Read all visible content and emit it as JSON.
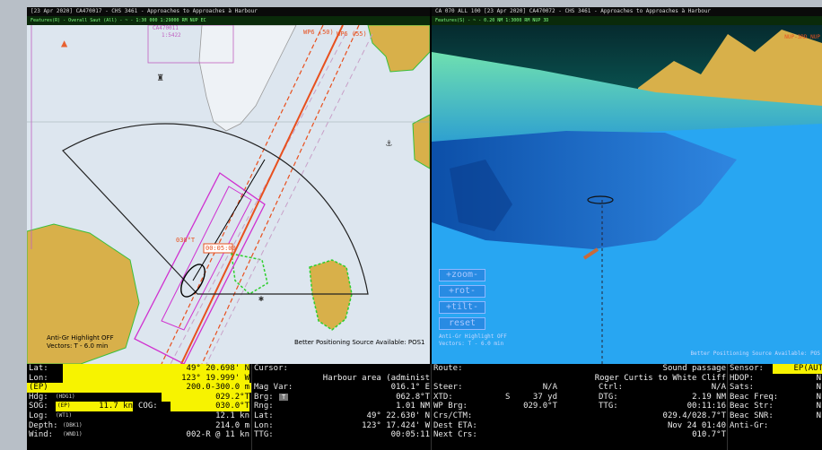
{
  "chart": {
    "title": "[23 Apr 2020] CA470017 - CHS 3461 - Approaches to Approaches à Harbour",
    "subtitle": "Features(R) - Overall Saut (All) -  ~  -  1:30 000  1:29000  RM  NUP  EC",
    "cell_label_1": "CA470011",
    "cell_label_2": "1:5422",
    "waypoint_label_1": "WP6 (50)",
    "waypoint_label_2": "WP6 (55)",
    "bearing_label": "030°T",
    "time_label": "00:05:00",
    "anti_grounding": "Anti-Gr Highlight OFF",
    "vectors": "Vectors: T - 6.0 min",
    "positioning": "Better Positioning Source Available: POS1"
  },
  "view3d": {
    "title": "CA 070 ALL 100  [23 Apr 2020] CA470072 - CHS 3461 - Approaches to Approaches à Harbour",
    "subtitle": "Features(S) -  ~  -  0.20 NM  1:3000  RM  NUP  3D",
    "top_right_tag": "NUP-3RD NUP",
    "buttons": [
      "+zoom-",
      "+rot-",
      "+tilt-",
      "reset"
    ],
    "anti_grounding": "Anti-Gr Highlight OFF",
    "vectors": "Vectors: T - 6.0 min",
    "positioning": "Better Positioning Source Available: POS"
  },
  "panel": {
    "lat_label": "Lat:",
    "lat_value": "49° 20.698' N",
    "lon_label": "Lon:",
    "lon_value": "123° 19.999' W",
    "ep_label": "(EP)",
    "ep_value": "200.0-300.0 m",
    "hdg_label": "Hdg:",
    "hdg_src": "(HDG1)",
    "hdg_value": "029.2°T",
    "sog_label": "SOG:",
    "sog_src": "(EP)",
    "sog_value": "11.7 kn",
    "cog_label": "COG:",
    "cog_value": "030.0°T",
    "log_label": "Log:",
    "log_src": "(WT1)",
    "log_value": "12.1 kn",
    "depth_label": "Depth:",
    "depth_src": "(DBK1)",
    "depth_value": "214.0 m",
    "wind_label": "Wind:",
    "wind_src": "(WND1)",
    "wind_value": "002-R @ 11 kn",
    "cursor_label": "Cursor:",
    "cursor_value": "Harbour area (administ",
    "magvar_label": "Mag Var:",
    "magvar_value": "016.1° E",
    "brg_label": "Brg:",
    "brg_chip": "T",
    "brg_value": "062.8°T",
    "rng_label": "Rng:",
    "rng_value": "1.01 NM",
    "clat_label": "Lat:",
    "clat_value": "49° 22.630' N",
    "clon_label": "Lon:",
    "clon_value": "123° 17.424' W",
    "ttg_label": "TTG:",
    "ttg_value": "00:05:11",
    "route_label": "Route:",
    "route_value": "Sound passage",
    "route_sub": "Roger Curtis to White Cliff",
    "steer_label": "Steer:",
    "steer_value": "N/A",
    "ctrl_label": "Ctrl:",
    "ctrl_value": "N/A",
    "xtd_label": "XTD:",
    "xtd_dir": "S",
    "xtd_value": "37 yd",
    "dtg_label": "DTG:",
    "dtg_value": "2.19 NM",
    "wpbrg_label": "WP Brg:",
    "wpbrg_value": "029.0°T",
    "ttg2_label": "TTG:",
    "ttg2_value": "00:11:16",
    "crs_label": "Crs/CTM:",
    "crs_value": "029.4/028.7°T",
    "eta_label": "Dest ETA:",
    "eta_value": "Nov 24 01:40",
    "next_label": "Next Crs:",
    "next_value": "010.7°T",
    "sensor_label": "Sensor:",
    "sensor_value": "EP(AUT",
    "hdop_label": "HDOP:",
    "hdop_value": "N",
    "sats_label": "Sats:",
    "sats_value": "N",
    "freq_label": "Beac Freq:",
    "freq_value": "N",
    "str_label": "Beac Str:",
    "str_value": "N",
    "snr_label": "Beac SNR:",
    "snr_value": "N",
    "antigr_label": "Anti-Gr:"
  },
  "colors": {
    "land": "#d8b04a",
    "water": "#dde6ef",
    "route": "#e8501e",
    "highlight": "#f7f300",
    "sea3d": "#28a6f2"
  }
}
